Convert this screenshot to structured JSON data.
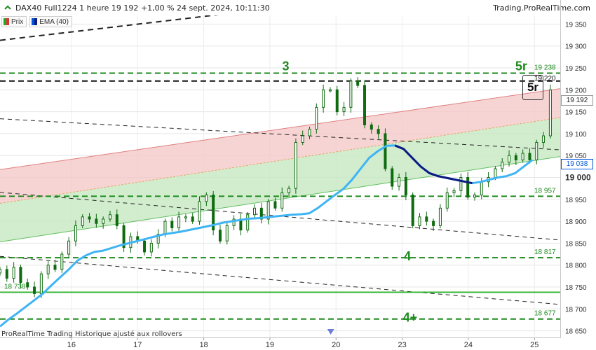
{
  "header": {
    "title": "DAX40 Full1224 1 heure 19 192 +1,00 % 24 sept. 2024, 10:11:30",
    "brand": "Trading.ProRealTime.com"
  },
  "legend": [
    {
      "label": "Prix",
      "color": "#22aa22"
    },
    {
      "label": "EMA (40)",
      "color": "#0055dd"
    }
  ],
  "footer": {
    "note": "ProRealTime Trading  Historique ajusté aux rollovers"
  },
  "colors": {
    "candle": "#0f6b0f",
    "ema_light": "#3fb4f5",
    "ema_dark": "#0d1a80",
    "dashed_green": "#1e8a1e",
    "solid_green": "#36b336",
    "channel_red": "#f4c6c6",
    "channel_green": "#c6e8c2"
  },
  "chart_data": {
    "type": "line",
    "title": "DAX40 Full1224 1 heure",
    "xlabel": "",
    "ylabel": "",
    "ylim": [
      18635,
      19405
    ],
    "y_ticks": [
      19350,
      19300,
      19250,
      19200,
      19150,
      19100,
      19050,
      19000,
      18950,
      18900,
      18850,
      18800,
      18750,
      18700,
      18650
    ],
    "y_tick_labels": [
      "19 350",
      "19 300",
      "19 250",
      "19 200",
      "19 150",
      "19 100",
      "19 050",
      "19 000",
      "18 950",
      "18 900",
      "18 850",
      "18 800",
      "18 750",
      "18 700",
      "18 650"
    ],
    "x_tick_labels": [
      "16",
      "17",
      "18",
      "19",
      "20",
      "23",
      "24",
      "25"
    ],
    "x_tick_positions": [
      3.5,
      16.0,
      28.5,
      41.0,
      53.5,
      66.0,
      78.5,
      91.0
    ],
    "x_range": [
      -10,
      96
    ],
    "level_lines": [
      {
        "value": 19238,
        "label": "19 238",
        "style": "dashed",
        "color": "green"
      },
      {
        "value": 19220,
        "label": "19 220",
        "style": "dashed",
        "color": "black"
      },
      {
        "value": 18957,
        "label": "18 957",
        "style": "dashed",
        "color": "green"
      },
      {
        "value": 18817,
        "label": "18 817",
        "style": "dashed",
        "color": "green"
      },
      {
        "value": 18738,
        "label": "18 738",
        "style": "solid",
        "color": "green"
      },
      {
        "value": 18677,
        "label": "18 677",
        "style": "dashed",
        "color": "green"
      }
    ],
    "trend_lines": [
      {
        "style": "dashed",
        "points": [
          [
            -10,
            19313
          ],
          [
            55,
            19405
          ]
        ]
      },
      {
        "style": "dashed",
        "points": [
          [
            -10,
            19134
          ],
          [
            96,
            19063
          ]
        ]
      },
      {
        "style": "dashed",
        "points": [
          [
            -10,
            18966
          ],
          [
            96,
            18857
          ]
        ]
      },
      {
        "style": "dashed",
        "points": [
          [
            -10,
            18820
          ],
          [
            96,
            18710
          ]
        ]
      }
    ],
    "channel": {
      "upper": [
        [
          -10,
          19018
        ],
        [
          96,
          19203
        ]
      ],
      "middle": [
        [
          -10,
          18941
        ],
        [
          96,
          19137
        ]
      ],
      "lower": [
        [
          -10,
          18853
        ],
        [
          96,
          19048
        ]
      ]
    },
    "annotations": [
      {
        "text": "3",
        "x": 44,
        "y": 19251
      },
      {
        "text": "5r",
        "x": 88.5,
        "y": 19251
      },
      {
        "text": "4",
        "x": 67,
        "y": 18817
      },
      {
        "text": "4+",
        "x": 67.5,
        "y": 18677
      }
    ],
    "boxed_label": "5r",
    "last_price": {
      "value": 19192,
      "label": "19 192"
    },
    "ema_value": {
      "value": 19038,
      "label": "19 038"
    },
    "series": [
      {
        "name": "Prix",
        "style": "candles",
        "values": [
          18790,
          18770,
          18795,
          18760,
          18750,
          18735,
          18780,
          18800,
          18790,
          18825,
          18855,
          18890,
          18910,
          18905,
          18895,
          18905,
          18915,
          18890,
          18840,
          18865,
          18855,
          18830,
          18850,
          18870,
          18900,
          18885,
          18910,
          18910,
          18900,
          18945,
          18960,
          18880,
          18855,
          18890,
          18905,
          18880,
          18915,
          18930,
          18905,
          18945,
          18930,
          18965,
          18975,
          19080,
          19095,
          19110,
          19160,
          19200,
          19200,
          19150,
          19160,
          19220,
          19210,
          19120,
          19110,
          19100,
          19020,
          18980,
          19000,
          18960,
          18890,
          18910,
          18900,
          18890,
          18930,
          18965,
          18970,
          19000,
          18955,
          18960,
          18990,
          19000,
          19020,
          19035,
          19050,
          19040,
          19055,
          19040,
          19080,
          19095,
          19200
        ]
      },
      {
        "name": "EMA (40)",
        "style": "line",
        "values": [
          18660,
          18676,
          18690,
          18705,
          18720,
          18735,
          18754,
          18772,
          18790,
          18810,
          18822,
          18830,
          18833,
          18839,
          18845,
          18850,
          18855,
          18860,
          18865,
          18870,
          18873,
          18876,
          18880,
          18884,
          18888,
          18892,
          18897,
          18900,
          18903,
          18906,
          18907,
          18909,
          18911,
          18913,
          18915,
          18916,
          18918,
          18930,
          18945,
          18960,
          18974,
          18995,
          19020,
          19045,
          19060,
          19072,
          19073,
          19065,
          19045,
          19025,
          19010,
          19003,
          18999,
          18995,
          18991,
          18987,
          18990,
          18995,
          19000,
          19003,
          19010,
          19025,
          19040
        ]
      }
    ]
  }
}
